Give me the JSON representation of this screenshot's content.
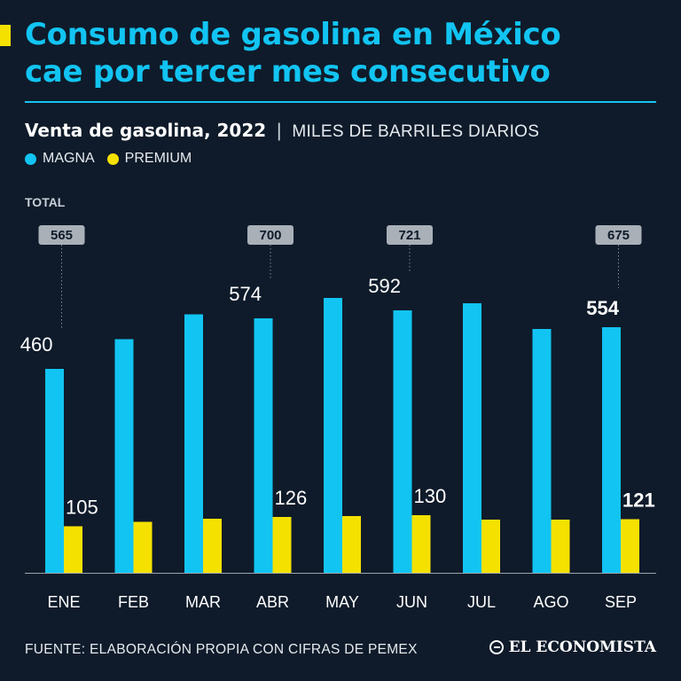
{
  "headline": {
    "line1": "Consumo de gasolina en México",
    "line2": "cae por tercer mes consecutivo"
  },
  "subtitle": {
    "main": "Venta de gasolina, 2022",
    "separator": "|",
    "unit": "MILES DE BARRILES DIARIOS"
  },
  "legend": [
    {
      "label": "MAGNA",
      "color": "#12c4f2"
    },
    {
      "label": "PREMIUM",
      "color": "#f5e100"
    }
  ],
  "footer": {
    "source": "FUENTE: ELABORACIÓN PROPIA CON CIFRAS DE PEMEX",
    "brand": "EL ECONOMISTA"
  },
  "chart_data": {
    "type": "bar",
    "categories": [
      "ENE",
      "FEB",
      "MAR",
      "ABR",
      "MAY",
      "JUN",
      "JUL",
      "AGO",
      "SEP"
    ],
    "series": [
      {
        "name": "MAGNA",
        "color": "#12c4f2",
        "values": [
          460,
          527,
          583,
          574,
          620,
          592,
          608,
          550,
          554
        ]
      },
      {
        "name": "PREMIUM",
        "color": "#f5e100",
        "values": [
          105,
          115,
          122,
          126,
          128,
          130,
          120,
          120,
          121
        ]
      }
    ],
    "data_labels": [
      {
        "series": 0,
        "index": 0,
        "text": "460",
        "bold": false
      },
      {
        "series": 1,
        "index": 0,
        "text": "105",
        "bold": false
      },
      {
        "series": 0,
        "index": 3,
        "text": "574",
        "bold": false
      },
      {
        "series": 1,
        "index": 3,
        "text": "126",
        "bold": false
      },
      {
        "series": 0,
        "index": 5,
        "text": "592",
        "bold": false
      },
      {
        "series": 1,
        "index": 5,
        "text": "130",
        "bold": false
      },
      {
        "series": 0,
        "index": 8,
        "text": "554",
        "bold": true
      },
      {
        "series": 1,
        "index": 8,
        "text": "121",
        "bold": true
      }
    ],
    "total_label": "TOTAL",
    "totals": [
      {
        "index": 0,
        "text": "565"
      },
      {
        "index": 3,
        "text": "700"
      },
      {
        "index": 5,
        "text": "721"
      },
      {
        "index": 8,
        "text": "675"
      }
    ],
    "ylim": [
      0,
      860
    ],
    "grid": false
  }
}
